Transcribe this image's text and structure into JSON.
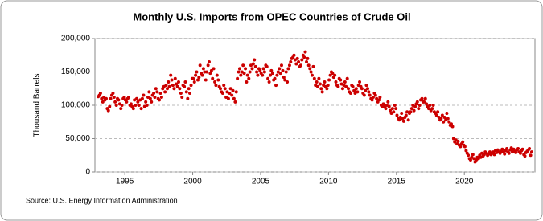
{
  "chart_data": {
    "type": "scatter",
    "title": "Monthly U.S. Imports from OPEC Countries of Crude Oil",
    "y_label": "Thousand Barrels",
    "source": "Source: U.S. Energy Information Administration",
    "color": "#cc0000",
    "grid": true,
    "xlim": [
      1992.8,
      2025.2
    ],
    "ylim": [
      0,
      200000
    ],
    "xticks": [
      1995,
      2000,
      2005,
      2010,
      2015,
      2020
    ],
    "yticks": [
      0,
      {
        "value": 50000,
        "label": "50,000"
      },
      {
        "value": 100000,
        "label": "100,000"
      },
      {
        "value": 150000,
        "label": "150,000"
      },
      {
        "value": 200000,
        "label": "200,000"
      }
    ],
    "x": [
      1993.04,
      1993.13,
      1993.21,
      1993.29,
      1993.38,
      1993.46,
      1993.54,
      1993.63,
      1993.71,
      1993.79,
      1993.88,
      1993.96,
      1994.04,
      1994.13,
      1994.21,
      1994.29,
      1994.38,
      1994.46,
      1994.54,
      1994.63,
      1994.71,
      1994.79,
      1994.88,
      1994.96,
      1995.04,
      1995.13,
      1995.21,
      1995.29,
      1995.38,
      1995.46,
      1995.54,
      1995.63,
      1995.71,
      1995.79,
      1995.88,
      1995.96,
      1996.04,
      1996.13,
      1996.21,
      1996.29,
      1996.38,
      1996.46,
      1996.54,
      1996.63,
      1996.71,
      1996.79,
      1996.88,
      1996.96,
      1997.04,
      1997.13,
      1997.21,
      1997.29,
      1997.38,
      1997.46,
      1997.54,
      1997.63,
      1997.71,
      1997.79,
      1997.88,
      1997.96,
      1998.04,
      1998.13,
      1998.21,
      1998.29,
      1998.38,
      1998.46,
      1998.54,
      1998.63,
      1998.71,
      1998.79,
      1998.88,
      1998.96,
      1999.04,
      1999.13,
      1999.21,
      1999.29,
      1999.38,
      1999.46,
      1999.54,
      1999.63,
      1999.71,
      1999.79,
      1999.88,
      1999.96,
      2000.04,
      2000.13,
      2000.21,
      2000.29,
      2000.38,
      2000.46,
      2000.54,
      2000.63,
      2000.71,
      2000.79,
      2000.88,
      2000.96,
      2001.04,
      2001.13,
      2001.21,
      2001.29,
      2001.38,
      2001.46,
      2001.54,
      2001.63,
      2001.71,
      2001.79,
      2001.88,
      2001.96,
      2002.04,
      2002.13,
      2002.21,
      2002.29,
      2002.38,
      2002.46,
      2002.54,
      2002.63,
      2002.71,
      2002.79,
      2002.88,
      2002.96,
      2003.04,
      2003.13,
      2003.21,
      2003.29,
      2003.38,
      2003.46,
      2003.54,
      2003.63,
      2003.71,
      2003.79,
      2003.88,
      2003.96,
      2004.04,
      2004.13,
      2004.21,
      2004.29,
      2004.38,
      2004.46,
      2004.54,
      2004.63,
      2004.71,
      2004.79,
      2004.88,
      2004.96,
      2005.04,
      2005.13,
      2005.21,
      2005.29,
      2005.38,
      2005.46,
      2005.54,
      2005.63,
      2005.71,
      2005.79,
      2005.88,
      2005.96,
      2006.04,
      2006.13,
      2006.21,
      2006.29,
      2006.38,
      2006.46,
      2006.54,
      2006.63,
      2006.71,
      2006.79,
      2006.88,
      2006.96,
      2007.04,
      2007.13,
      2007.21,
      2007.29,
      2007.38,
      2007.46,
      2007.54,
      2007.63,
      2007.71,
      2007.79,
      2007.88,
      2007.96,
      2008.04,
      2008.13,
      2008.21,
      2008.29,
      2008.38,
      2008.46,
      2008.54,
      2008.63,
      2008.71,
      2008.79,
      2008.88,
      2008.96,
      2009.04,
      2009.13,
      2009.21,
      2009.29,
      2009.38,
      2009.46,
      2009.54,
      2009.63,
      2009.71,
      2009.79,
      2009.88,
      2009.96,
      2010.04,
      2010.13,
      2010.21,
      2010.29,
      2010.38,
      2010.46,
      2010.54,
      2010.63,
      2010.71,
      2010.79,
      2010.88,
      2010.96,
      2011.04,
      2011.13,
      2011.21,
      2011.29,
      2011.38,
      2011.46,
      2011.54,
      2011.63,
      2011.71,
      2011.79,
      2011.88,
      2011.96,
      2012.04,
      2012.13,
      2012.21,
      2012.29,
      2012.38,
      2012.46,
      2012.54,
      2012.63,
      2012.71,
      2012.79,
      2012.88,
      2012.96,
      2013.04,
      2013.13,
      2013.21,
      2013.29,
      2013.38,
      2013.46,
      2013.54,
      2013.63,
      2013.71,
      2013.79,
      2013.88,
      2013.96,
      2014.04,
      2014.13,
      2014.21,
      2014.29,
      2014.38,
      2014.46,
      2014.54,
      2014.63,
      2014.71,
      2014.79,
      2014.88,
      2014.96,
      2015.04,
      2015.13,
      2015.21,
      2015.29,
      2015.38,
      2015.46,
      2015.54,
      2015.63,
      2015.71,
      2015.79,
      2015.88,
      2015.96,
      2016.04,
      2016.13,
      2016.21,
      2016.29,
      2016.38,
      2016.46,
      2016.54,
      2016.63,
      2016.71,
      2016.79,
      2016.88,
      2016.96,
      2017.04,
      2017.13,
      2017.21,
      2017.29,
      2017.38,
      2017.46,
      2017.54,
      2017.63,
      2017.71,
      2017.79,
      2017.88,
      2017.96,
      2018.04,
      2018.13,
      2018.21,
      2018.29,
      2018.38,
      2018.46,
      2018.54,
      2018.63,
      2018.71,
      2018.79,
      2018.88,
      2018.96,
      2019.04,
      2019.13,
      2019.21,
      2019.29,
      2019.38,
      2019.46,
      2019.54,
      2019.63,
      2019.71,
      2019.79,
      2019.88,
      2019.96,
      2020.04,
      2020.13,
      2020.21,
      2020.29,
      2020.38,
      2020.46,
      2020.54,
      2020.63,
      2020.71,
      2020.79,
      2020.88,
      2020.96,
      2021.04,
      2021.13,
      2021.21,
      2021.29,
      2021.38,
      2021.46,
      2021.54,
      2021.63,
      2021.71,
      2021.79,
      2021.88,
      2021.96,
      2022.04,
      2022.13,
      2022.21,
      2022.29,
      2022.38,
      2022.46,
      2022.54,
      2022.63,
      2022.71,
      2022.79,
      2022.88,
      2022.96,
      2023.04,
      2023.13,
      2023.21,
      2023.29,
      2023.38,
      2023.46,
      2023.54,
      2023.63,
      2023.71,
      2023.79,
      2023.88,
      2023.96,
      2024.04,
      2024.13,
      2024.21,
      2024.29,
      2024.38,
      2024.46,
      2024.54,
      2024.63,
      2024.71,
      2024.79,
      2024.88,
      2024.96
    ],
    "values": [
      113000,
      115000,
      118000,
      110000,
      105000,
      112000,
      108000,
      110000,
      95000,
      92000,
      98000,
      110000,
      115000,
      118000,
      112000,
      105000,
      100000,
      110000,
      108000,
      102000,
      95000,
      100000,
      110000,
      112000,
      108000,
      105000,
      110000,
      112000,
      100000,
      102000,
      98000,
      95000,
      108000,
      100000,
      110000,
      105000,
      100000,
      108000,
      95000,
      110000,
      115000,
      98000,
      105000,
      100000,
      112000,
      120000,
      110000,
      105000,
      115000,
      118000,
      112000,
      125000,
      120000,
      110000,
      108000,
      118000,
      112000,
      125000,
      128000,
      120000,
      130000,
      125000,
      135000,
      128000,
      145000,
      138000,
      130000,
      125000,
      140000,
      132000,
      128000,
      135000,
      125000,
      118000,
      112000,
      130000,
      128000,
      135000,
      120000,
      110000,
      125000,
      118000,
      130000,
      140000,
      140000,
      135000,
      145000,
      150000,
      138000,
      142000,
      160000,
      148000,
      145000,
      155000,
      150000,
      138000,
      150000,
      160000,
      165000,
      148000,
      152000,
      140000,
      155000,
      135000,
      130000,
      145000,
      138000,
      128000,
      125000,
      120000,
      118000,
      130000,
      125000,
      112000,
      120000,
      110000,
      118000,
      125000,
      115000,
      122000,
      110000,
      105000,
      120000,
      140000,
      150000,
      155000,
      145000,
      150000,
      160000,
      148000,
      155000,
      135000,
      145000,
      140000,
      150000,
      160000,
      155000,
      162000,
      168000,
      158000,
      150000,
      145000,
      155000,
      152000,
      148000,
      145000,
      155000,
      150000,
      160000,
      158000,
      140000,
      135000,
      145000,
      152000,
      148000,
      138000,
      140000,
      130000,
      145000,
      150000,
      155000,
      148000,
      160000,
      152000,
      142000,
      138000,
      150000,
      135000,
      155000,
      160000,
      165000,
      170000,
      172000,
      175000,
      168000,
      162000,
      170000,
      165000,
      158000,
      160000,
      168000,
      175000,
      172000,
      180000,
      165000,
      170000,
      160000,
      155000,
      150000,
      145000,
      158000,
      140000,
      130000,
      135000,
      128000,
      140000,
      132000,
      125000,
      120000,
      130000,
      135000,
      128000,
      125000,
      130000,
      138000,
      145000,
      150000,
      148000,
      142000,
      145000,
      135000,
      130000,
      128000,
      140000,
      138000,
      132000,
      125000,
      130000,
      135000,
      128000,
      140000,
      125000,
      120000,
      118000,
      130000,
      128000,
      122000,
      118000,
      125000,
      120000,
      130000,
      135000,
      128000,
      125000,
      118000,
      115000,
      122000,
      130000,
      125000,
      120000,
      115000,
      110000,
      108000,
      112000,
      118000,
      115000,
      110000,
      105000,
      108000,
      112000,
      100000,
      98000,
      102000,
      98000,
      95000,
      100000,
      105000,
      98000,
      92000,
      88000,
      95000,
      90000,
      100000,
      95000,
      85000,
      80000,
      78000,
      82000,
      88000,
      80000,
      76000,
      82000,
      85000,
      90000,
      78000,
      88000,
      90000,
      95000,
      100000,
      92000,
      98000,
      102000,
      105000,
      95000,
      100000,
      108000,
      110000,
      105000,
      105000,
      110000,
      102000,
      98000,
      95000,
      100000,
      92000,
      95000,
      100000,
      90000,
      88000,
      85000,
      90000,
      82000,
      78000,
      80000,
      85000,
      75000,
      82000,
      78000,
      88000,
      80000,
      75000,
      70000,
      72000,
      68000,
      50000,
      45000,
      48000,
      42000,
      46000,
      40000,
      38000,
      42000,
      45000,
      40000,
      38000,
      32000,
      28000,
      25000,
      20000,
      18000,
      22000,
      26000,
      20000,
      15000,
      18000,
      22000,
      20000,
      25000,
      22000,
      28000,
      24000,
      26000,
      30000,
      28000,
      25000,
      27000,
      30000,
      26000,
      28000,
      30000,
      26000,
      32000,
      29000,
      33000,
      30000,
      28000,
      31000,
      34000,
      30000,
      27000,
      32000,
      35000,
      30000,
      28000,
      33000,
      36000,
      30000,
      34000,
      31000,
      29000,
      33000,
      35000,
      30000,
      28000,
      32000,
      34000,
      26000,
      24000,
      29000,
      31000,
      33000,
      35000,
      25000,
      30000
    ]
  }
}
